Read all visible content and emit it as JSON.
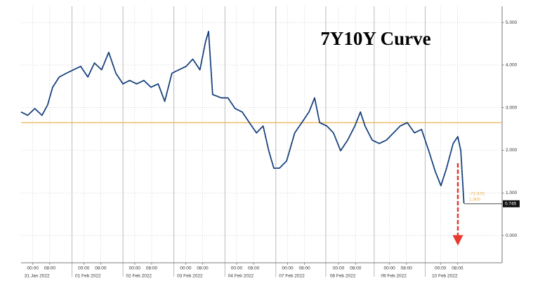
{
  "chart_data": {
    "type": "line",
    "title": "7Y10Y Curve",
    "color": "#1d4f96",
    "x": [
      -0.23,
      -0.1,
      0.04,
      0.18,
      0.29,
      0.39,
      0.52,
      0.66,
      0.8,
      0.94,
      1.08,
      1.21,
      1.35,
      1.49,
      1.63,
      1.77,
      1.9,
      2.04,
      2.18,
      2.32,
      2.46,
      2.59,
      2.73,
      2.87,
      3.01,
      3.14,
      3.28,
      3.39,
      3.45,
      3.53,
      3.7,
      3.83,
      3.97,
      4.11,
      4.25,
      4.39,
      4.52,
      4.63,
      4.73,
      4.84,
      4.98,
      5.14,
      5.28,
      5.42,
      5.53,
      5.63,
      5.77,
      5.9,
      6.04,
      6.18,
      6.32,
      6.43,
      6.52,
      6.66,
      6.8,
      6.94,
      7.08,
      7.21,
      7.35,
      7.49,
      7.63,
      7.77,
      7.9,
      8.01,
      8.12,
      8.25,
      8.34,
      8.4,
      8.46
    ],
    "values": [
      2.9,
      2.82,
      2.98,
      2.82,
      3.06,
      3.48,
      3.72,
      3.81,
      3.89,
      3.97,
      3.72,
      4.05,
      3.89,
      4.3,
      3.81,
      3.56,
      3.64,
      3.56,
      3.64,
      3.48,
      3.56,
      3.15,
      3.81,
      3.89,
      3.97,
      4.14,
      3.89,
      4.55,
      4.79,
      3.31,
      3.23,
      3.23,
      2.98,
      2.9,
      2.65,
      2.41,
      2.57,
      1.99,
      1.58,
      1.58,
      1.75,
      2.41,
      2.65,
      2.9,
      3.23,
      2.65,
      2.57,
      2.41,
      1.99,
      2.24,
      2.57,
      2.9,
      2.57,
      2.24,
      2.16,
      2.24,
      2.41,
      2.57,
      2.65,
      2.41,
      2.49,
      1.99,
      1.5,
      1.17,
      1.58,
      2.16,
      2.32,
      1.99,
      0.76
    ],
    "xlim": [
      -0.23,
      9.21
    ],
    "ylim": [
      -0.64,
      5.38
    ],
    "yticks": [
      {
        "value": 0,
        "label": "0.000"
      },
      {
        "value": 1,
        "label": "1.000"
      },
      {
        "value": 2,
        "label": "2.000"
      },
      {
        "value": 3,
        "label": "3.000"
      },
      {
        "value": 4,
        "label": "4.000"
      },
      {
        "value": 5,
        "label": "5.000"
      }
    ],
    "xticks": [
      {
        "value": 0,
        "label": "31 Jan 2022"
      },
      {
        "value": 1,
        "label": "01 Feb 2022"
      },
      {
        "value": 2,
        "label": "02 Feb 2022"
      },
      {
        "value": 3,
        "label": "03 Feb 2022"
      },
      {
        "value": 4,
        "label": "04 Feb 2022"
      },
      {
        "value": 5,
        "label": "07 Feb 2022"
      },
      {
        "value": 6,
        "label": "08 Feb 2022"
      },
      {
        "value": 7,
        "label": "09 Feb 2022"
      },
      {
        "value": 8,
        "label": "10 Feb 2022"
      }
    ],
    "xminorticks": [
      {
        "value": 0,
        "label": "00:00"
      },
      {
        "value": 0.333,
        "label": "08:00"
      },
      {
        "value": 1,
        "label": "00:00"
      },
      {
        "value": 1.333,
        "label": "08:00"
      },
      {
        "value": 2,
        "label": "00:00"
      },
      {
        "value": 2.333,
        "label": "08:00"
      },
      {
        "value": 3,
        "label": "00:00"
      },
      {
        "value": 3.333,
        "label": "08:00"
      },
      {
        "value": 4,
        "label": "00:00"
      },
      {
        "value": 4.333,
        "label": "08:00"
      },
      {
        "value": 5,
        "label": "00:00"
      },
      {
        "value": 5.333,
        "label": "08:00"
      },
      {
        "value": 6,
        "label": "00:00"
      },
      {
        "value": 6.333,
        "label": "08:00"
      },
      {
        "value": 7,
        "label": "00:00"
      },
      {
        "value": 7.333,
        "label": "08:00"
      },
      {
        "value": 8,
        "label": "00:00"
      },
      {
        "value": 8.333,
        "label": "08:00"
      }
    ],
    "session_breaks": [
      0.77,
      1.77,
      2.77,
      3.77,
      4.77,
      5.75,
      6.7,
      7.7
    ],
    "grid": true,
    "reference_line": {
      "value": 2.65,
      "color": "#f0b04a"
    },
    "last_value": {
      "value": 0.745,
      "label": "0.745"
    },
    "annotations": [
      "-72.675",
      "1.900"
    ]
  }
}
